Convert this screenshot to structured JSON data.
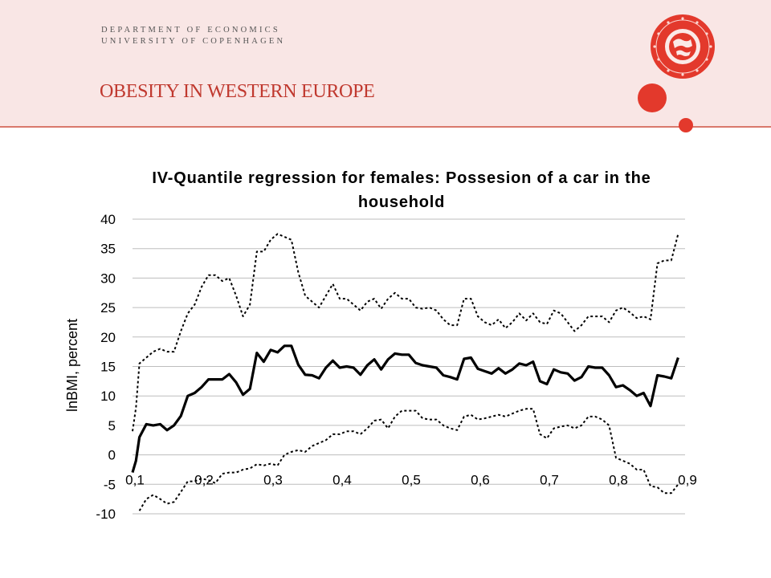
{
  "header": {
    "dept_line1": "DEPARTMENT OF ECONOMICS",
    "dept_line2": "UNIVERSITY OF COPENHAGEN",
    "slide_title": "OBESITY IN WESTERN EUROPE",
    "seal_icon": "university-seal-icon",
    "accent_color": "#e3392c"
  },
  "chart_data": {
    "type": "line",
    "title_line1": "IV-Quantile regression for females: Possesion of a car in the",
    "title_line2": "household",
    "xlabel": "",
    "ylabel": "lnBMI, percent",
    "xlim": [
      0.1,
      0.9
    ],
    "ylim": [
      -10,
      40
    ],
    "x_ticks": [
      "0,1",
      "0,2",
      "0,3",
      "0,4",
      "0,5",
      "0,6",
      "0,7",
      "0,8",
      "0,9"
    ],
    "x_tick_values": [
      0.1,
      0.2,
      0.3,
      0.4,
      0.5,
      0.6,
      0.7,
      0.8,
      0.9
    ],
    "y_ticks": [
      "40",
      "35",
      "30",
      "25",
      "20",
      "15",
      "10",
      "5",
      "0",
      "-5",
      "-10"
    ],
    "y_tick_values": [
      40,
      35,
      30,
      25,
      20,
      15,
      10,
      5,
      0,
      -5,
      -10
    ],
    "grid": "horizontal",
    "legend": "none",
    "series": [
      {
        "style": "solid",
        "color": "#000000",
        "points": [
          [
            0.1,
            -3
          ],
          [
            0.105,
            -1
          ],
          [
            0.11,
            3
          ],
          [
            0.12,
            5.2
          ],
          [
            0.13,
            5
          ],
          [
            0.14,
            5.2
          ],
          [
            0.15,
            4.2
          ],
          [
            0.16,
            5
          ],
          [
            0.17,
            6.6
          ],
          [
            0.18,
            10
          ],
          [
            0.19,
            10.5
          ],
          [
            0.2,
            11.5
          ],
          [
            0.21,
            12.8
          ],
          [
            0.22,
            12.8
          ],
          [
            0.23,
            12.8
          ],
          [
            0.24,
            13.7
          ],
          [
            0.25,
            12.3
          ],
          [
            0.26,
            10.2
          ],
          [
            0.27,
            11.2
          ],
          [
            0.28,
            17.3
          ],
          [
            0.29,
            15.8
          ],
          [
            0.3,
            17.8
          ],
          [
            0.31,
            17.4
          ],
          [
            0.32,
            18.5
          ],
          [
            0.33,
            18.5
          ],
          [
            0.34,
            15.3
          ],
          [
            0.35,
            13.6
          ],
          [
            0.36,
            13.5
          ],
          [
            0.37,
            13
          ],
          [
            0.38,
            14.8
          ],
          [
            0.39,
            16
          ],
          [
            0.4,
            14.8
          ],
          [
            0.41,
            15
          ],
          [
            0.42,
            14.8
          ],
          [
            0.43,
            13.6
          ],
          [
            0.44,
            15.2
          ],
          [
            0.45,
            16.2
          ],
          [
            0.46,
            14.5
          ],
          [
            0.47,
            16.2
          ],
          [
            0.48,
            17.2
          ],
          [
            0.49,
            17
          ],
          [
            0.5,
            17
          ],
          [
            0.51,
            15.6
          ],
          [
            0.52,
            15.2
          ],
          [
            0.53,
            15
          ],
          [
            0.54,
            14.8
          ],
          [
            0.55,
            13.5
          ],
          [
            0.56,
            13.2
          ],
          [
            0.57,
            12.8
          ],
          [
            0.58,
            16.3
          ],
          [
            0.59,
            16.5
          ],
          [
            0.6,
            14.6
          ],
          [
            0.61,
            14.2
          ],
          [
            0.62,
            13.8
          ],
          [
            0.63,
            14.7
          ],
          [
            0.64,
            13.8
          ],
          [
            0.65,
            14.5
          ],
          [
            0.66,
            15.5
          ],
          [
            0.67,
            15.2
          ],
          [
            0.68,
            15.8
          ],
          [
            0.69,
            12.5
          ],
          [
            0.7,
            12
          ],
          [
            0.71,
            14.5
          ],
          [
            0.72,
            14
          ],
          [
            0.73,
            13.8
          ],
          [
            0.74,
            12.6
          ],
          [
            0.75,
            13.2
          ],
          [
            0.76,
            15
          ],
          [
            0.77,
            14.8
          ],
          [
            0.78,
            14.8
          ],
          [
            0.79,
            13.5
          ],
          [
            0.8,
            11.5
          ],
          [
            0.81,
            11.8
          ],
          [
            0.82,
            11
          ],
          [
            0.83,
            10
          ],
          [
            0.84,
            10.5
          ],
          [
            0.85,
            8.3
          ],
          [
            0.86,
            13.5
          ],
          [
            0.87,
            13.3
          ],
          [
            0.88,
            13
          ],
          [
            0.89,
            16.5
          ]
        ]
      },
      {
        "style": "dotted",
        "color": "#000000",
        "points": [
          [
            0.1,
            4
          ],
          [
            0.105,
            8
          ],
          [
            0.11,
            15.5
          ],
          [
            0.12,
            16.5
          ],
          [
            0.13,
            17.5
          ],
          [
            0.14,
            18
          ],
          [
            0.15,
            17.5
          ],
          [
            0.16,
            17.5
          ],
          [
            0.17,
            21
          ],
          [
            0.18,
            24
          ],
          [
            0.19,
            25.5
          ],
          [
            0.2,
            28.5
          ],
          [
            0.21,
            30.5
          ],
          [
            0.22,
            30.5
          ],
          [
            0.23,
            29.5
          ],
          [
            0.24,
            30
          ],
          [
            0.25,
            27
          ],
          [
            0.26,
            23.5
          ],
          [
            0.27,
            25.5
          ],
          [
            0.28,
            34.5
          ],
          [
            0.29,
            34.5
          ],
          [
            0.3,
            36.5
          ],
          [
            0.31,
            37.5
          ],
          [
            0.32,
            37
          ],
          [
            0.33,
            36.5
          ],
          [
            0.34,
            31
          ],
          [
            0.35,
            27
          ],
          [
            0.36,
            26
          ],
          [
            0.37,
            25
          ],
          [
            0.38,
            27
          ],
          [
            0.39,
            29
          ],
          [
            0.4,
            26.5
          ],
          [
            0.41,
            26.5
          ],
          [
            0.42,
            25.5
          ],
          [
            0.43,
            24.5
          ],
          [
            0.44,
            26
          ],
          [
            0.45,
            26.5
          ],
          [
            0.46,
            24.8
          ],
          [
            0.47,
            26.5
          ],
          [
            0.48,
            27.5
          ],
          [
            0.49,
            26.5
          ],
          [
            0.5,
            26.5
          ],
          [
            0.51,
            25
          ],
          [
            0.52,
            24.8
          ],
          [
            0.53,
            25
          ],
          [
            0.54,
            24.5
          ],
          [
            0.55,
            23
          ],
          [
            0.56,
            22
          ],
          [
            0.57,
            22
          ],
          [
            0.58,
            26.5
          ],
          [
            0.59,
            26.5
          ],
          [
            0.6,
            23.5
          ],
          [
            0.61,
            22.5
          ],
          [
            0.62,
            22
          ],
          [
            0.63,
            23
          ],
          [
            0.64,
            21.5
          ],
          [
            0.65,
            22.5
          ],
          [
            0.66,
            24
          ],
          [
            0.67,
            22.8
          ],
          [
            0.68,
            24
          ],
          [
            0.69,
            22.5
          ],
          [
            0.7,
            22.2
          ],
          [
            0.71,
            24.5
          ],
          [
            0.72,
            24
          ],
          [
            0.73,
            22.5
          ],
          [
            0.74,
            21
          ],
          [
            0.75,
            22
          ],
          [
            0.76,
            23.5
          ],
          [
            0.77,
            23.5
          ],
          [
            0.78,
            23.5
          ],
          [
            0.79,
            22.5
          ],
          [
            0.8,
            24.5
          ],
          [
            0.81,
            25
          ],
          [
            0.82,
            24.2
          ],
          [
            0.83,
            23.2
          ],
          [
            0.84,
            23.5
          ],
          [
            0.85,
            23
          ],
          [
            0.86,
            32.5
          ],
          [
            0.87,
            33
          ],
          [
            0.88,
            33
          ],
          [
            0.89,
            37.5
          ]
        ]
      },
      {
        "style": "dotted",
        "color": "#000000",
        "points": [
          [
            0.11,
            -9.5
          ],
          [
            0.12,
            -7.5
          ],
          [
            0.13,
            -6.8
          ],
          [
            0.14,
            -7.5
          ],
          [
            0.15,
            -8.3
          ],
          [
            0.16,
            -8
          ],
          [
            0.17,
            -6.3
          ],
          [
            0.18,
            -4.5
          ],
          [
            0.19,
            -4.5
          ],
          [
            0.2,
            -4
          ],
          [
            0.21,
            -4.3
          ],
          [
            0.22,
            -4.8
          ],
          [
            0.23,
            -3.2
          ],
          [
            0.24,
            -3
          ],
          [
            0.25,
            -3
          ],
          [
            0.26,
            -2.5
          ],
          [
            0.27,
            -2.3
          ],
          [
            0.28,
            -1.6
          ],
          [
            0.29,
            -1.8
          ],
          [
            0.3,
            -1.5
          ],
          [
            0.31,
            -1.8
          ],
          [
            0.32,
            0
          ],
          [
            0.33,
            0.5
          ],
          [
            0.34,
            0.8
          ],
          [
            0.35,
            0.5
          ],
          [
            0.36,
            1.5
          ],
          [
            0.37,
            2
          ],
          [
            0.38,
            2.5
          ],
          [
            0.39,
            3.5
          ],
          [
            0.4,
            3.5
          ],
          [
            0.41,
            4
          ],
          [
            0.42,
            4
          ],
          [
            0.43,
            3.5
          ],
          [
            0.44,
            4.5
          ],
          [
            0.45,
            5.8
          ],
          [
            0.46,
            6
          ],
          [
            0.47,
            4.5
          ],
          [
            0.48,
            6.5
          ],
          [
            0.49,
            7.5
          ],
          [
            0.5,
            7.5
          ],
          [
            0.51,
            7.5
          ],
          [
            0.52,
            6.2
          ],
          [
            0.53,
            6
          ],
          [
            0.54,
            6
          ],
          [
            0.55,
            5
          ],
          [
            0.56,
            4.5
          ],
          [
            0.57,
            4.2
          ],
          [
            0.58,
            6.5
          ],
          [
            0.59,
            6.8
          ],
          [
            0.6,
            6
          ],
          [
            0.61,
            6.2
          ],
          [
            0.62,
            6.5
          ],
          [
            0.63,
            6.8
          ],
          [
            0.64,
            6.5
          ],
          [
            0.65,
            7
          ],
          [
            0.66,
            7.5
          ],
          [
            0.67,
            7.8
          ],
          [
            0.68,
            7.8
          ],
          [
            0.69,
            3.5
          ],
          [
            0.7,
            2.8
          ],
          [
            0.71,
            4.5
          ],
          [
            0.72,
            4.8
          ],
          [
            0.73,
            5
          ],
          [
            0.74,
            4.5
          ],
          [
            0.75,
            5
          ],
          [
            0.76,
            6.5
          ],
          [
            0.77,
            6.5
          ],
          [
            0.78,
            6
          ],
          [
            0.79,
            5
          ],
          [
            0.8,
            -0.5
          ],
          [
            0.81,
            -1
          ],
          [
            0.82,
            -1.5
          ],
          [
            0.83,
            -2.5
          ],
          [
            0.84,
            -2.5
          ],
          [
            0.85,
            -5.3
          ],
          [
            0.86,
            -5.5
          ],
          [
            0.87,
            -6.5
          ],
          [
            0.88,
            -6.5
          ],
          [
            0.89,
            -5
          ]
        ]
      }
    ]
  }
}
